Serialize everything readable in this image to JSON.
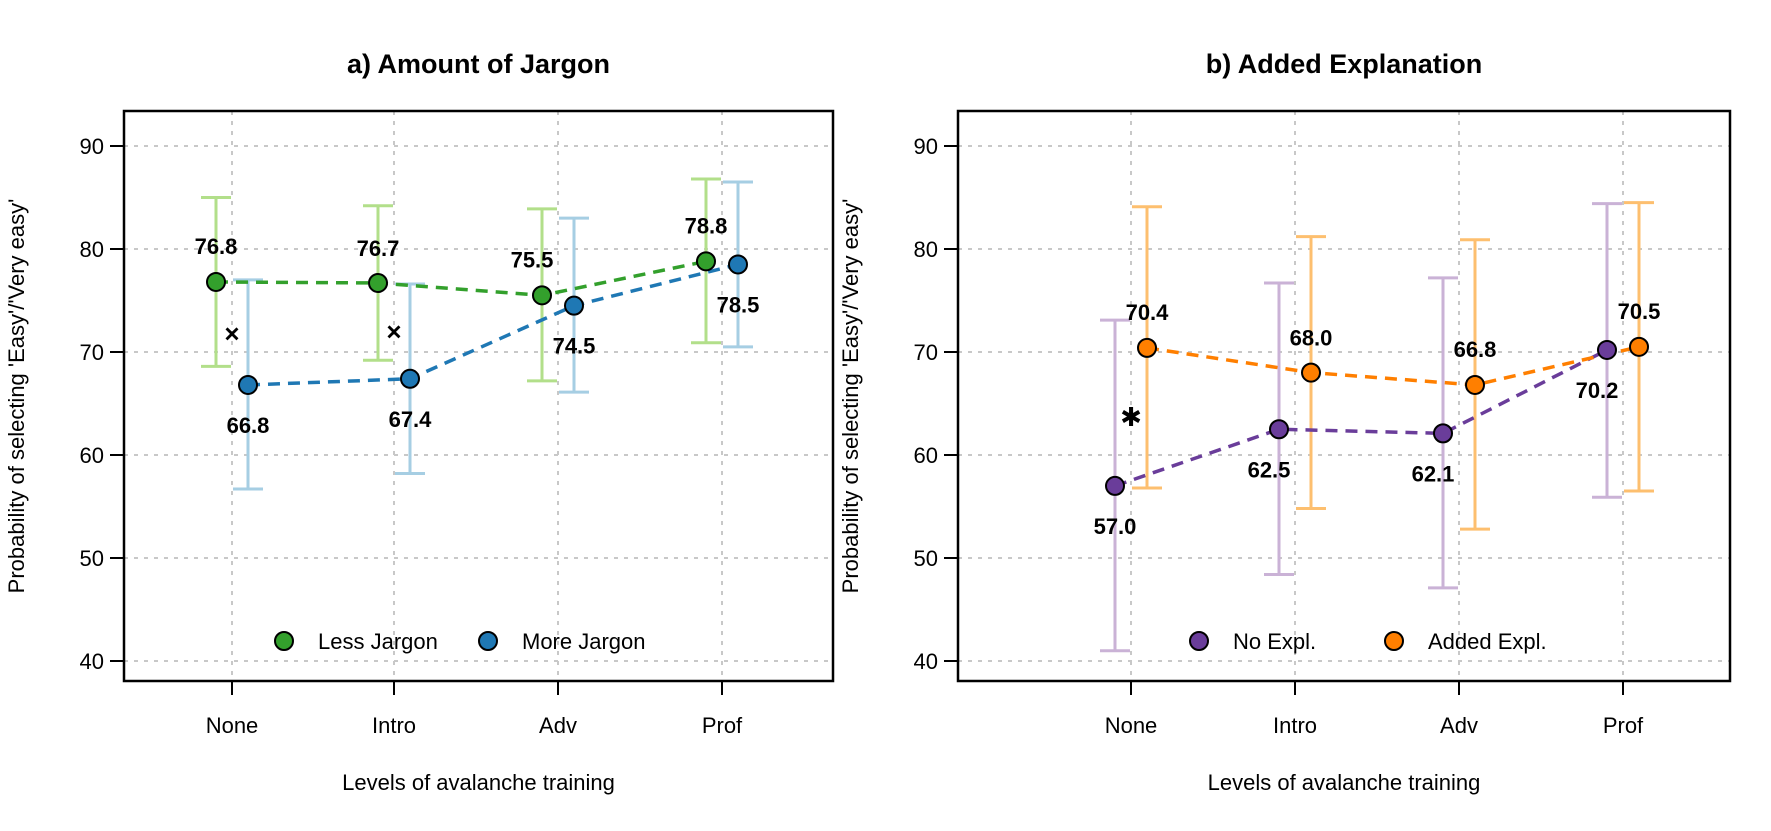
{
  "chart_data": [
    {
      "type": "line",
      "title": "a) Amount of Jargon",
      "xlabel": "Levels of avalanche training",
      "ylabel": "Probability of selecting 'Easy'/'Very easy'",
      "categories": [
        "None",
        "Intro",
        "Adv",
        "Prof"
      ],
      "ylim": [
        40,
        90
      ],
      "yticks": [
        40,
        50,
        60,
        70,
        80,
        90
      ],
      "grid": true,
      "legend_position": "bottom-center",
      "series": [
        {
          "name": "Less Jargon",
          "point_color": "#33a02c",
          "bar_color": "#b2df8a",
          "values": [
            76.8,
            76.7,
            75.5,
            78.8
          ],
          "lower": [
            68.6,
            69.2,
            67.2,
            70.9
          ],
          "upper": [
            85.0,
            84.2,
            83.9,
            86.8
          ],
          "labels": [
            "76.8",
            "76.7",
            "75.5",
            "78.8"
          ]
        },
        {
          "name": "More Jargon",
          "point_color": "#1f78b4",
          "bar_color": "#a6cee3",
          "values": [
            66.8,
            67.4,
            74.5,
            78.5
          ],
          "lower": [
            56.7,
            58.2,
            66.1,
            70.5
          ],
          "upper": [
            77.0,
            76.6,
            83.0,
            86.5
          ],
          "labels": [
            "66.8",
            "67.4",
            "74.5",
            "78.5"
          ]
        }
      ],
      "markers": [
        {
          "category": "None",
          "symbol": "×",
          "y": 71.8
        },
        {
          "category": "Intro",
          "symbol": "×",
          "y": 72.0
        }
      ]
    },
    {
      "type": "line",
      "title": "b) Added Explanation",
      "xlabel": "Levels of avalanche training",
      "ylabel": "Probability of selecting 'Easy'/'Very easy'",
      "categories": [
        "None",
        "Intro",
        "Adv",
        "Prof"
      ],
      "ylim": [
        40,
        90
      ],
      "yticks": [
        40,
        50,
        60,
        70,
        80,
        90
      ],
      "grid": true,
      "legend_position": "bottom-center",
      "series": [
        {
          "name": "No Expl.",
          "point_color": "#6a3d9a",
          "bar_color": "#cab2d6",
          "values": [
            57.0,
            62.5,
            62.1,
            70.2
          ],
          "lower": [
            41.0,
            48.4,
            47.1,
            55.9
          ],
          "upper": [
            73.1,
            76.7,
            77.2,
            84.4
          ],
          "labels": [
            "57.0",
            "62.5",
            "62.1",
            "70.2"
          ]
        },
        {
          "name": "Added Expl.",
          "point_color": "#ff7f00",
          "bar_color": "#fdbf6f",
          "values": [
            70.4,
            68.0,
            66.8,
            70.5
          ],
          "lower": [
            56.8,
            54.8,
            52.8,
            56.5
          ],
          "upper": [
            84.1,
            81.2,
            80.9,
            84.5
          ],
          "labels": [
            "70.4",
            "68.0",
            "66.8",
            "70.5"
          ]
        }
      ],
      "markers": [
        {
          "category": "None",
          "symbol": "✱",
          "y": 63.7
        }
      ]
    }
  ]
}
